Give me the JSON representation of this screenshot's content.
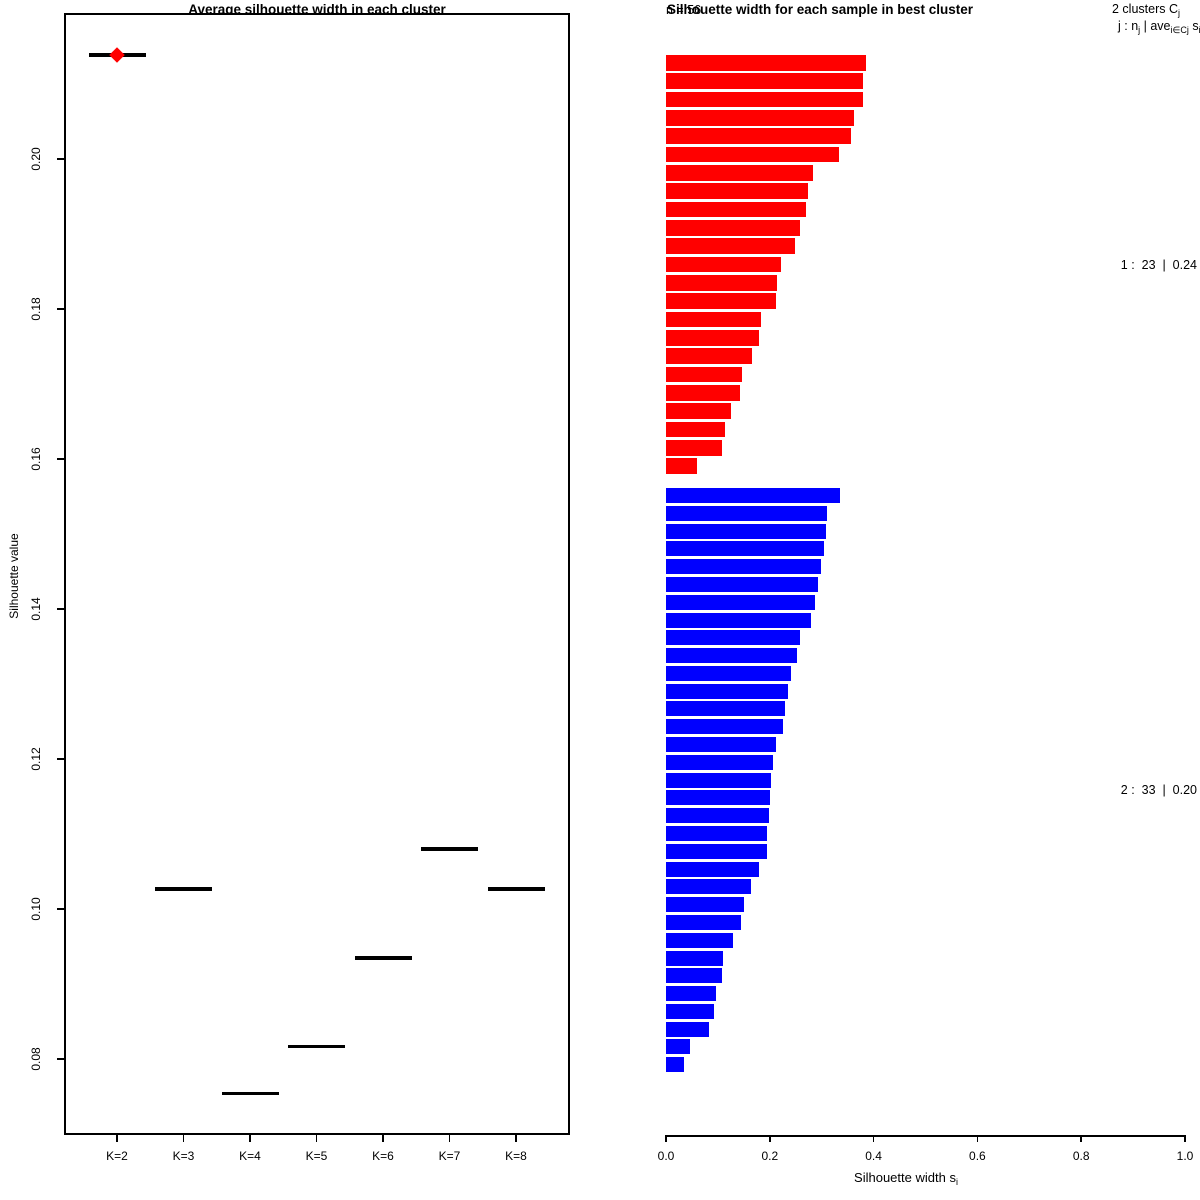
{
  "page": {
    "background": "#ffffff",
    "text_color": "#000000"
  },
  "chart_data": [
    {
      "type": "scatter",
      "title": "Average silhouette width in each cluster",
      "ylabel": "Silhouette value",
      "xlabel": "",
      "categories": [
        "K=2",
        "K=3",
        "K=4",
        "K=5",
        "K=6",
        "K=7",
        "K=8"
      ],
      "values": [
        0.2139,
        0.1027,
        0.0754,
        0.0817,
        0.0935,
        0.108,
        0.1027
      ],
      "best_index": 0,
      "marker": "horizontal-segment",
      "best_marker": "red-diamond",
      "yticks": [
        "0.08",
        "0.10",
        "0.12",
        "0.14",
        "0.16",
        "0.18",
        "0.20"
      ],
      "ylim": [
        0.0699,
        0.2195
      ],
      "grid": "off",
      "colors": {
        "segment": "#000000",
        "best_marker": "#ff0000"
      }
    },
    {
      "type": "bar",
      "orientation": "horizontal",
      "title": "Silhouette width for each sample in best cluster",
      "n_label": "n = 56",
      "legend_line1_parts": [
        {
          "t": "2 clusters C"
        },
        {
          "t": "j",
          "sub": true
        }
      ],
      "legend_line2_parts": [
        {
          "t": "j :  n"
        },
        {
          "t": "j",
          "sub": true
        },
        {
          "t": " | ave"
        },
        {
          "t": "i∈Cj",
          "sub": true
        },
        {
          "t": " s"
        },
        {
          "t": "i",
          "sub": true
        }
      ],
      "xlabel_parts": [
        {
          "t": "Silhouette width s"
        },
        {
          "t": "i",
          "sub": true
        }
      ],
      "xticks": [
        "0.0",
        "0.2",
        "0.4",
        "0.6",
        "0.8",
        "1.0"
      ],
      "xlim": [
        0,
        1
      ],
      "grid": "off",
      "series": [
        {
          "name": "cluster-1",
          "label": "1 :  23  |  0.24",
          "color": "#ff0000",
          "values": [
            0.385,
            0.379,
            0.379,
            0.362,
            0.356,
            0.333,
            0.283,
            0.274,
            0.269,
            0.258,
            0.249,
            0.222,
            0.214,
            0.211,
            0.183,
            0.179,
            0.166,
            0.146,
            0.142,
            0.125,
            0.114,
            0.107,
            0.059
          ]
        },
        {
          "name": "cluster-2",
          "label": "2 :  33  |  0.20",
          "color": "#0000ff",
          "values": [
            0.335,
            0.31,
            0.308,
            0.304,
            0.299,
            0.293,
            0.288,
            0.279,
            0.258,
            0.252,
            0.24,
            0.235,
            0.229,
            0.226,
            0.212,
            0.206,
            0.202,
            0.201,
            0.198,
            0.194,
            0.194,
            0.18,
            0.164,
            0.15,
            0.145,
            0.129,
            0.11,
            0.108,
            0.096,
            0.093,
            0.082,
            0.046,
            0.035
          ]
        }
      ]
    }
  ]
}
